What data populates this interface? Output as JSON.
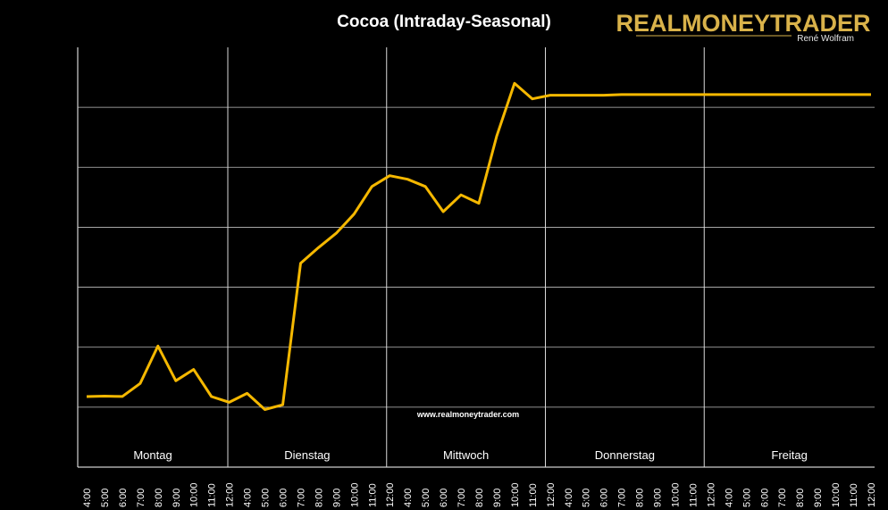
{
  "chart_data": {
    "type": "line",
    "title": "Cocoa (Intraday-Seasonal)",
    "days": [
      "Montag",
      "Dienstag",
      "Mittwoch",
      "Donnerstag",
      "Freitag"
    ],
    "x": [
      "4:00",
      "5:00",
      "6:00",
      "7:00",
      "8:00",
      "9:00",
      "10:00",
      "11:00",
      "12:00",
      "4:00",
      "5:00",
      "6:00",
      "7:00",
      "8:00",
      "9:00",
      "10:00",
      "11:00",
      "12:00",
      "4:00",
      "5:00",
      "6:00",
      "7:00",
      "8:00",
      "9:00",
      "10:00",
      "11:00",
      "12:00",
      "4:00",
      "5:00",
      "6:00",
      "7:00",
      "8:00",
      "9:00",
      "10:00",
      "11:00",
      "12:00",
      "4:00",
      "5:00",
      "6:00",
      "7:00",
      "8:00",
      "9:00",
      "10:00",
      "11:00",
      "12:00"
    ],
    "series": [
      {
        "color": "#f5b800",
        "values": [
          0.88,
          0.92,
          0.89,
          1.98,
          5.1,
          2.2,
          3.15,
          0.88,
          0.41,
          1.15,
          -0.2,
          0.2,
          12.0,
          13.3,
          14.5,
          16.1,
          18.4,
          19.3,
          19.0,
          18.4,
          16.3,
          17.7,
          17.0,
          22.6,
          27.0,
          25.7,
          26.01,
          26.01,
          26.01,
          26.01,
          26.06,
          26.06,
          26.06,
          26.06,
          26.06,
          26.06,
          26.06,
          26.06,
          26.06,
          26.06,
          26.06,
          26.06,
          26.06,
          26.06,
          26.06
        ]
      }
    ],
    "ylim": [
      -5,
      30
    ],
    "grid": true,
    "watermark": "www.realmoneytrader.com"
  },
  "logo": {
    "name": "REALMONEYTRADER",
    "author": "René Wolfram"
  }
}
